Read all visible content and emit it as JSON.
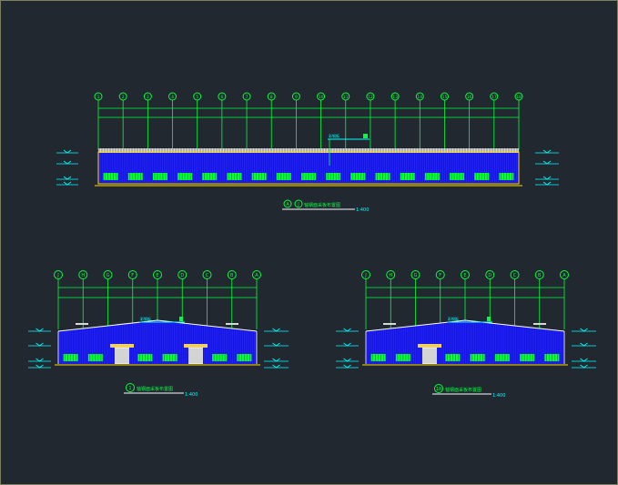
{
  "drawing": {
    "colors": {
      "background": "#212830",
      "frame": "#7d8060",
      "axis": "#00ff3c",
      "wall": "#1414e6",
      "wall_lines": "#3c3cff",
      "roof": "#ffffff",
      "base": "#ffd700",
      "windows": "#00ff3c",
      "dims": "#00ffff",
      "label": "#00ffff",
      "scale": "#00ffff"
    },
    "top": {
      "axes": [
        "1",
        "2",
        "3",
        "4",
        "5",
        "6",
        "7",
        "8",
        "9",
        "10",
        "11",
        "12",
        "13",
        "14",
        "15",
        "16",
        "17",
        "18"
      ],
      "title_axes": [
        "A",
        "J"
      ],
      "title": "轴钢面采板布置图",
      "scale": "1:400",
      "note": "彩钢板"
    },
    "left": {
      "axes": [
        "J",
        "H",
        "G",
        "F",
        "E",
        "D",
        "C",
        "B",
        "A"
      ],
      "title_axis": "1",
      "title": "轴钢面采板布置图",
      "scale": "1:400",
      "note": "彩钢板"
    },
    "right": {
      "axes": [
        "J",
        "H",
        "G",
        "F",
        "E",
        "D",
        "C",
        "B",
        "A"
      ],
      "title_axis": "18",
      "title": "轴钢面采板布置图",
      "scale": "1:400",
      "note": "彩钢板"
    }
  }
}
